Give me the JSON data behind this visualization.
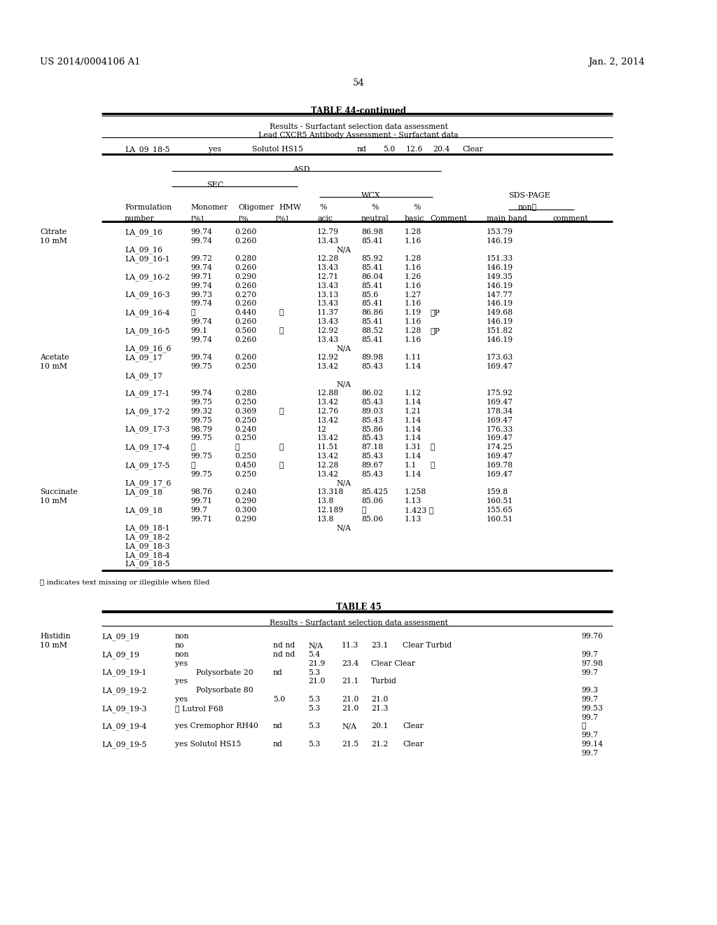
{
  "page_number": "54",
  "patent_number": "US 2014/0004106 A1",
  "patent_date": "Jan. 2, 2014",
  "table44_title": "TABLE 44-continued",
  "table44_subtitle1": "Results - Surfactant selection data assessment",
  "table44_subtitle2": "Lead CXCR5 Antibody Assessment - Surfactant data",
  "footnote": "ⓘ indicates text missing or illegible when filed",
  "table45_title": "TABLE 45",
  "table45_subtitle": "Results - Surfactant selection data assessment"
}
